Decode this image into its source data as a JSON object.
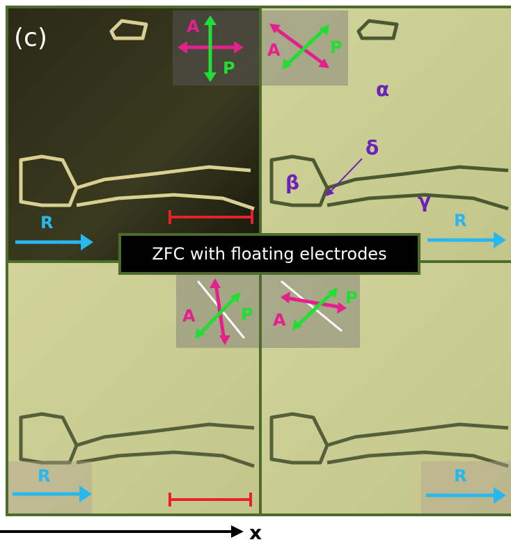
{
  "panel_label": "(c)",
  "banner": "ZFC with floating electrodes",
  "axis_label": "x",
  "quadrants": [
    {
      "analyzer": "A",
      "polarizer": "P",
      "reference": "R"
    },
    {
      "analyzer": "A",
      "polarizer": "P",
      "reference": "R"
    },
    {
      "analyzer": "A",
      "polarizer": "P",
      "reference": "R"
    },
    {
      "analyzer": "A",
      "polarizer": "P",
      "reference": "R"
    }
  ],
  "phases": [
    "α",
    "β",
    "γ",
    "δ"
  ]
}
